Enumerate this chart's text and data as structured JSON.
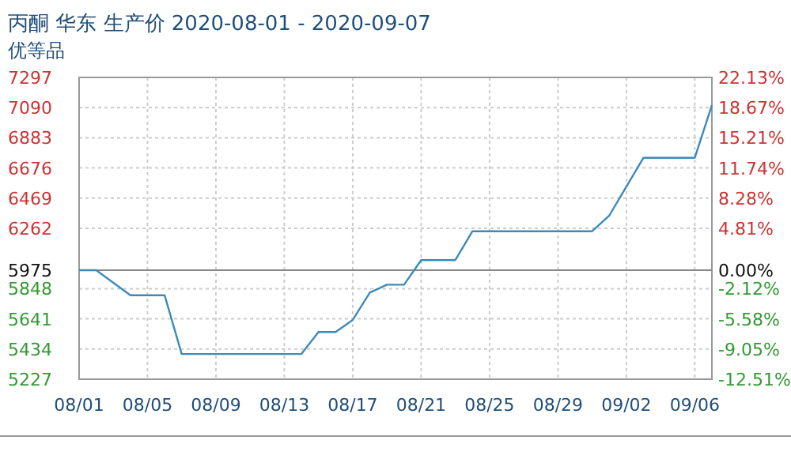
{
  "chart_data": {
    "type": "line",
    "title": "丙酮 华东 生产价 2020-08-01 - 2020-09-07",
    "subtitle": "优等品",
    "x": [
      "2020-08-01",
      "2020-08-02",
      "2020-08-04",
      "2020-08-06",
      "2020-08-07",
      "2020-08-14",
      "2020-08-15",
      "2020-08-16",
      "2020-08-17",
      "2020-08-18",
      "2020-08-19",
      "2020-08-20",
      "2020-08-21",
      "2020-08-23",
      "2020-08-24",
      "2020-08-31",
      "2020-09-01",
      "2020-09-03",
      "2020-09-06",
      "2020-09-07"
    ],
    "series": [
      {
        "color": "#3d8ab8",
        "values": [
          5975,
          5975,
          5803,
          5803,
          5400,
          5400,
          5551,
          5551,
          5634,
          5821,
          5875,
          5875,
          6044,
          6044,
          6242,
          6242,
          6350,
          6746,
          6746,
          7106
        ]
      }
    ],
    "xlim": [
      "2020-08-01",
      "2020-09-07"
    ],
    "xticks": [
      {
        "value": "2020-08-01",
        "label": "08/01"
      },
      {
        "value": "2020-08-05",
        "label": "08/05"
      },
      {
        "value": "2020-08-09",
        "label": "08/09"
      },
      {
        "value": "2020-08-13",
        "label": "08/13"
      },
      {
        "value": "2020-08-17",
        "label": "08/17"
      },
      {
        "value": "2020-08-21",
        "label": "08/21"
      },
      {
        "value": "2020-08-25",
        "label": "08/25"
      },
      {
        "value": "2020-08-29",
        "label": "08/29"
      },
      {
        "value": "2020-09-02",
        "label": "09/02"
      },
      {
        "value": "2020-09-06",
        "label": "09/06"
      }
    ],
    "ylim": [
      5227,
      7297
    ],
    "yticks": [
      5227,
      5434,
      5641,
      5848,
      5975,
      6262,
      6469,
      6676,
      6883,
      7090,
      7297
    ],
    "y2lim": [
      -12.51,
      22.13
    ],
    "y2ticks": [
      {
        "value": -12.51,
        "label": "-12.51%"
      },
      {
        "value": -9.05,
        "label": "-9.05%"
      },
      {
        "value": -5.58,
        "label": "-5.58%"
      },
      {
        "value": -2.12,
        "label": "-2.12%"
      },
      {
        "value": 0,
        "label": "0.00%"
      },
      {
        "value": 4.81,
        "label": "4.81%"
      },
      {
        "value": 8.28,
        "label": "8.28%"
      },
      {
        "value": 11.74,
        "label": "11.74%"
      },
      {
        "value": 15.21,
        "label": "15.21%"
      },
      {
        "value": 18.67,
        "label": "18.67%"
      },
      {
        "value": 22.13,
        "label": "22.13%"
      }
    ],
    "ref_lines": [
      {
        "axis": "y",
        "value": 5975,
        "color": "#888888"
      }
    ],
    "grid": true,
    "line_style": "solid"
  }
}
